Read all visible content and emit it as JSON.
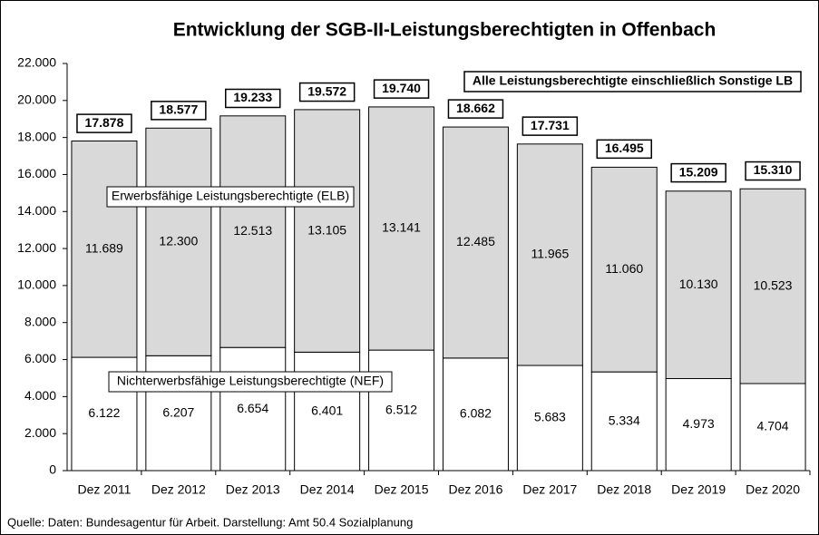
{
  "chart_data": {
    "type": "stacked_bar",
    "title": "Entwicklung der SGB-II-Leistungsberechtigten in Offenbach",
    "categories": [
      "Dez 2011",
      "Dez 2012",
      "Dez 2013",
      "Dez 2014",
      "Dez 2015",
      "Dez 2016",
      "Dez 2017",
      "Dez 2018",
      "Dez 2019",
      "Dez 2020"
    ],
    "series": [
      {
        "name": "Nichterwerbsfähige Leistungsberechtigte (NEF)",
        "color": "#ffffff",
        "values": [
          6122,
          6207,
          6654,
          6401,
          6512,
          6082,
          5683,
          5334,
          4973,
          4704
        ],
        "value_labels": [
          "6.122",
          "6.207",
          "6.654",
          "6.401",
          "6.512",
          "6.082",
          "5.683",
          "5.334",
          "4.973",
          "4.704"
        ]
      },
      {
        "name": "Erwerbsfähige Leistungsberechtigte (ELB)",
        "color": "#d9d9d9",
        "values": [
          11689,
          12300,
          12513,
          13105,
          13141,
          12485,
          11965,
          11060,
          10130,
          10523
        ],
        "value_labels": [
          "11.689",
          "12.300",
          "12.513",
          "13.105",
          "13.141",
          "12.485",
          "11.965",
          "11.060",
          "10.130",
          "10.523"
        ]
      }
    ],
    "totals": {
      "name": "Alle Leistungsberechtigte einschließlich Sonstige LB",
      "values": [
        17878,
        18577,
        19233,
        19572,
        19740,
        18662,
        17731,
        16495,
        15209,
        15310
      ],
      "value_labels": [
        "17.878",
        "18.577",
        "19.233",
        "19.572",
        "19.740",
        "18.662",
        "17.731",
        "16.495",
        "15.209",
        "15.310"
      ]
    },
    "ylim": [
      0,
      22000
    ],
    "yticks": [
      0,
      {
        "value": 2000,
        "label": "2.000"
      },
      {
        "value": 4000,
        "label": "4.000"
      },
      {
        "value": 6000,
        "label": "6.000"
      },
      {
        "value": 8000,
        "label": "8.000"
      },
      {
        "value": 10000,
        "label": "10.000"
      },
      {
        "value": 12000,
        "label": "12.000"
      },
      {
        "value": 14000,
        "label": "14.000"
      },
      {
        "value": 16000,
        "label": "16.000"
      },
      {
        "value": 18000,
        "label": "18.000"
      },
      {
        "value": 20000,
        "label": "20.000"
      },
      {
        "value": 22000,
        "label": "22.000"
      }
    ],
    "source": "Quelle: Daten: Bundesagentur für Arbeit. Darstellung: Amt 50.4 Sozialplanung"
  }
}
